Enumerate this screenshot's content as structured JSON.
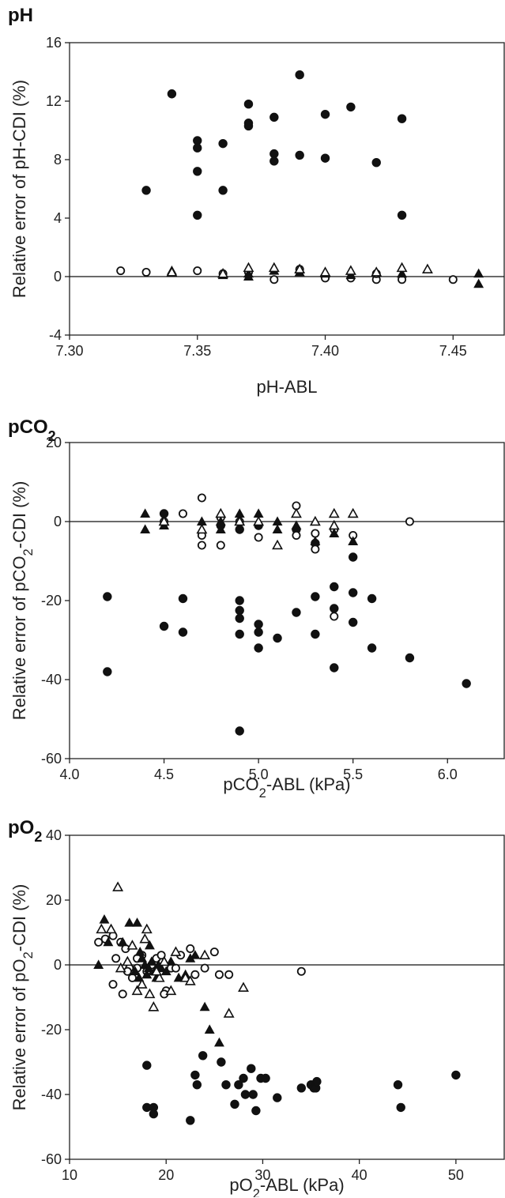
{
  "chart_data": [
    {
      "type": "scatter",
      "title": "pH",
      "title_sub": "",
      "xlabel": "pH-ABL",
      "xlabel_sub": "",
      "xlabel_tail": "",
      "ylabel": "Relative error of pH-CDI (%)",
      "ylabel_sub": "",
      "ylabel_tail": "",
      "xlim": [
        7.3,
        7.47
      ],
      "ylim": [
        -4,
        16
      ],
      "xticks": [
        7.3,
        7.35,
        7.4,
        7.45
      ],
      "xtick_labels": [
        "7.30",
        "7.35",
        "7.40",
        "7.45"
      ],
      "yticks": [
        -4,
        0,
        4,
        8,
        12,
        16
      ],
      "ytick_labels": [
        "-4",
        "0",
        "4",
        "8",
        "12",
        "16"
      ],
      "zero_line": true,
      "series": [
        {
          "marker": "filled-circle",
          "points": [
            [
              7.33,
              5.9
            ],
            [
              7.34,
              12.5
            ],
            [
              7.35,
              9.3
            ],
            [
              7.35,
              8.8
            ],
            [
              7.35,
              7.2
            ],
            [
              7.35,
              4.2
            ],
            [
              7.36,
              9.1
            ],
            [
              7.36,
              5.9
            ],
            [
              7.37,
              11.8
            ],
            [
              7.37,
              10.5
            ],
            [
              7.37,
              10.3
            ],
            [
              7.38,
              10.9
            ],
            [
              7.38,
              8.4
            ],
            [
              7.38,
              7.9
            ],
            [
              7.39,
              13.8
            ],
            [
              7.39,
              8.3
            ],
            [
              7.4,
              11.1
            ],
            [
              7.4,
              8.1
            ],
            [
              7.41,
              11.6
            ],
            [
              7.42,
              7.8
            ],
            [
              7.43,
              10.8
            ],
            [
              7.43,
              4.2
            ]
          ]
        },
        {
          "marker": "open-circle",
          "points": [
            [
              7.32,
              0.4
            ],
            [
              7.33,
              0.3
            ],
            [
              7.35,
              0.4
            ],
            [
              7.36,
              0.2
            ],
            [
              7.37,
              0.3
            ],
            [
              7.38,
              -0.2
            ],
            [
              7.39,
              0.5
            ],
            [
              7.4,
              -0.1
            ],
            [
              7.41,
              -0.1
            ],
            [
              7.42,
              -0.2
            ],
            [
              7.42,
              0.2
            ],
            [
              7.43,
              -0.2
            ],
            [
              7.45,
              -0.2
            ]
          ]
        },
        {
          "marker": "filled-triangle",
          "points": [
            [
              7.34,
              0.4
            ],
            [
              7.36,
              0.1
            ],
            [
              7.37,
              0.2
            ],
            [
              7.37,
              0.0
            ],
            [
              7.38,
              0.4
            ],
            [
              7.39,
              0.3
            ],
            [
              7.4,
              0.2
            ],
            [
              7.41,
              0.1
            ],
            [
              7.42,
              0.3
            ],
            [
              7.43,
              0.2
            ],
            [
              7.46,
              0.2
            ],
            [
              7.46,
              -0.5
            ]
          ]
        },
        {
          "marker": "open-triangle",
          "points": [
            [
              7.34,
              0.3
            ],
            [
              7.36,
              0.2
            ],
            [
              7.37,
              0.6
            ],
            [
              7.38,
              0.6
            ],
            [
              7.39,
              0.5
            ],
            [
              7.4,
              0.3
            ],
            [
              7.41,
              0.4
            ],
            [
              7.42,
              0.3
            ],
            [
              7.43,
              0.6
            ],
            [
              7.44,
              0.5
            ]
          ]
        }
      ]
    },
    {
      "type": "scatter",
      "title": "pCO",
      "title_sub": "2",
      "xlabel": "pCO",
      "xlabel_sub": "2",
      "xlabel_tail": "-ABL (kPa)",
      "ylabel": "Relative error of pCO",
      "ylabel_sub": "2",
      "ylabel_tail": "-CDI (%)",
      "xlim": [
        4.0,
        6.3
      ],
      "ylim": [
        -60,
        20
      ],
      "xticks": [
        4.0,
        4.5,
        5.0,
        5.5,
        6.0
      ],
      "xtick_labels": [
        "4.0",
        "4.5",
        "5.0",
        "5.5",
        "6.0"
      ],
      "yticks": [
        -60,
        -40,
        -20,
        0,
        20
      ],
      "ytick_labels": [
        "-60",
        "-40",
        "-20",
        "0",
        "20"
      ],
      "zero_line": true,
      "series": [
        {
          "marker": "filled-circle",
          "points": [
            [
              4.2,
              -19
            ],
            [
              4.2,
              -38
            ],
            [
              4.5,
              -26.5
            ],
            [
              4.6,
              -19.5
            ],
            [
              4.6,
              -28
            ],
            [
              4.9,
              -20
            ],
            [
              4.9,
              -22.5
            ],
            [
              4.9,
              -24.5
            ],
            [
              4.9,
              -28.5
            ],
            [
              4.9,
              -53
            ],
            [
              5.0,
              -26
            ],
            [
              5.0,
              -28
            ],
            [
              5.0,
              -32
            ],
            [
              5.1,
              -29.5
            ],
            [
              5.2,
              -23
            ],
            [
              5.3,
              -19
            ],
            [
              5.3,
              -28.5
            ],
            [
              5.4,
              -16.5
            ],
            [
              5.4,
              -22
            ],
            [
              5.4,
              -37
            ],
            [
              5.5,
              -9
            ],
            [
              5.5,
              -18
            ],
            [
              5.5,
              -25.5
            ],
            [
              5.6,
              -19.5
            ],
            [
              5.6,
              -32
            ],
            [
              5.8,
              -34.5
            ],
            [
              6.1,
              -41
            ],
            [
              4.5,
              2
            ],
            [
              4.8,
              -1
            ],
            [
              4.9,
              -2
            ],
            [
              5.0,
              -1
            ],
            [
              5.2,
              -2
            ],
            [
              5.3,
              -5.5
            ]
          ]
        },
        {
          "marker": "open-circle",
          "points": [
            [
              4.5,
              0
            ],
            [
              4.6,
              2
            ],
            [
              4.7,
              6
            ],
            [
              4.7,
              -3.5
            ],
            [
              4.7,
              -6
            ],
            [
              4.8,
              1
            ],
            [
              4.8,
              -6
            ],
            [
              4.9,
              0
            ],
            [
              5.0,
              -4
            ],
            [
              5.2,
              4
            ],
            [
              5.2,
              -3.5
            ],
            [
              5.3,
              -3
            ],
            [
              5.3,
              -7
            ],
            [
              5.4,
              -2
            ],
            [
              5.4,
              -24
            ],
            [
              5.5,
              -3.5
            ],
            [
              5.8,
              0
            ]
          ]
        },
        {
          "marker": "filled-triangle",
          "points": [
            [
              4.4,
              2
            ],
            [
              4.4,
              -2
            ],
            [
              4.5,
              -1
            ],
            [
              4.7,
              0
            ],
            [
              4.7,
              -2
            ],
            [
              4.8,
              0
            ],
            [
              4.8,
              -2
            ],
            [
              4.9,
              2
            ],
            [
              4.9,
              0
            ],
            [
              5.0,
              2
            ],
            [
              5.0,
              0
            ],
            [
              5.1,
              0
            ],
            [
              5.1,
              -2
            ],
            [
              5.2,
              -1
            ],
            [
              5.3,
              -5
            ],
            [
              5.4,
              -3
            ],
            [
              5.5,
              -5
            ]
          ]
        },
        {
          "marker": "open-triangle",
          "points": [
            [
              4.5,
              0
            ],
            [
              4.7,
              -2
            ],
            [
              4.8,
              2
            ],
            [
              4.9,
              0
            ],
            [
              5.0,
              0
            ],
            [
              5.1,
              -6
            ],
            [
              5.2,
              2
            ],
            [
              5.3,
              0
            ],
            [
              5.4,
              2
            ],
            [
              5.4,
              -1
            ],
            [
              5.5,
              2
            ]
          ]
        }
      ]
    },
    {
      "type": "scatter",
      "title": "pO",
      "title_sub": "2",
      "xlabel": "pO",
      "xlabel_sub": "2",
      "xlabel_tail": "-ABL (kPa)",
      "ylabel": "Relative error of pO",
      "ylabel_sub": "2",
      "ylabel_tail": "-CDI (%)",
      "xlim": [
        10,
        55
      ],
      "ylim": [
        -60,
        40
      ],
      "xticks": [
        10,
        20,
        30,
        40,
        50
      ],
      "xtick_labels": [
        "10",
        "20",
        "30",
        "40",
        "50"
      ],
      "yticks": [
        -60,
        -40,
        -20,
        0,
        20,
        40
      ],
      "ytick_labels": [
        "-60",
        "-40",
        "-20",
        "0",
        "20",
        "40"
      ],
      "zero_line": true,
      "series": [
        {
          "marker": "filled-circle",
          "points": [
            [
              18,
              -31
            ],
            [
              18,
              -44
            ],
            [
              18.7,
              -44
            ],
            [
              18.7,
              -46
            ],
            [
              22.5,
              -48
            ],
            [
              23,
              -34
            ],
            [
              23.2,
              -37
            ],
            [
              23.8,
              -28
            ],
            [
              25.7,
              -30
            ],
            [
              26.2,
              -37
            ],
            [
              27.1,
              -43
            ],
            [
              27.5,
              -37
            ],
            [
              28,
              -35
            ],
            [
              28.2,
              -40
            ],
            [
              28.8,
              -32
            ],
            [
              29,
              -40
            ],
            [
              29.3,
              -45
            ],
            [
              29.8,
              -35
            ],
            [
              30.3,
              -35
            ],
            [
              31.5,
              -41
            ],
            [
              34,
              -38
            ],
            [
              35,
              -37
            ],
            [
              35.3,
              -38
            ],
            [
              35.5,
              -38
            ],
            [
              35.6,
              -36
            ],
            [
              44,
              -37
            ],
            [
              44.3,
              -44
            ],
            [
              50,
              -34
            ]
          ]
        },
        {
          "marker": "open-circle",
          "points": [
            [
              13,
              7
            ],
            [
              13.7,
              8
            ],
            [
              14.5,
              -6
            ],
            [
              14.8,
              2
            ],
            [
              15.3,
              7
            ],
            [
              15.5,
              -9
            ],
            [
              15.8,
              5
            ],
            [
              16.2,
              -1
            ],
            [
              16.5,
              -4
            ],
            [
              17,
              -1
            ],
            [
              17.5,
              3
            ],
            [
              18,
              -2
            ],
            [
              18.5,
              0
            ],
            [
              19,
              2
            ],
            [
              19.5,
              3
            ],
            [
              20,
              -8
            ],
            [
              20.5,
              -1
            ],
            [
              21,
              -1
            ],
            [
              21.5,
              3
            ],
            [
              22.5,
              5
            ],
            [
              23,
              -3
            ],
            [
              24,
              -1
            ],
            [
              25,
              4
            ],
            [
              25.5,
              -3
            ],
            [
              26.5,
              -3
            ],
            [
              34,
              -2
            ],
            [
              14.5,
              9
            ],
            [
              16,
              -2
            ],
            [
              17,
              2
            ],
            [
              19.8,
              -9
            ]
          ]
        },
        {
          "marker": "filled-triangle",
          "points": [
            [
              13,
              0
            ],
            [
              13.6,
              14
            ],
            [
              14,
              7
            ],
            [
              15.5,
              7
            ],
            [
              16.2,
              13
            ],
            [
              17,
              13
            ],
            [
              17.3,
              4
            ],
            [
              17.5,
              2
            ],
            [
              17.8,
              0
            ],
            [
              18,
              -3
            ],
            [
              18.3,
              6
            ],
            [
              18.5,
              1
            ],
            [
              18.8,
              -2
            ],
            [
              19,
              -4
            ],
            [
              19.5,
              -1
            ],
            [
              20,
              -2
            ],
            [
              20.5,
              1
            ],
            [
              22,
              -3
            ],
            [
              22.5,
              2
            ],
            [
              23,
              3
            ],
            [
              24,
              -13
            ],
            [
              24.5,
              -20
            ],
            [
              25.5,
              -24
            ],
            [
              16.8,
              -2
            ],
            [
              17.2,
              -4
            ],
            [
              18.2,
              -1
            ],
            [
              19.2,
              0
            ],
            [
              21.3,
              -4
            ]
          ]
        },
        {
          "marker": "open-triangle",
          "points": [
            [
              15,
              24
            ],
            [
              13.3,
              11
            ],
            [
              14.3,
              11
            ],
            [
              15.3,
              -1
            ],
            [
              16,
              1
            ],
            [
              17,
              -8
            ],
            [
              17.5,
              -6
            ],
            [
              18,
              11
            ],
            [
              18.3,
              -9
            ],
            [
              18.7,
              -13
            ],
            [
              19.3,
              -4
            ],
            [
              19.8,
              1
            ],
            [
              20.5,
              -8
            ],
            [
              21,
              4
            ],
            [
              22,
              -4
            ],
            [
              22.5,
              -5
            ],
            [
              24,
              3
            ],
            [
              26.5,
              -15
            ],
            [
              28,
              -7
            ],
            [
              16.5,
              6
            ],
            [
              17.8,
              8
            ],
            [
              19,
              -2
            ]
          ]
        }
      ]
    }
  ]
}
